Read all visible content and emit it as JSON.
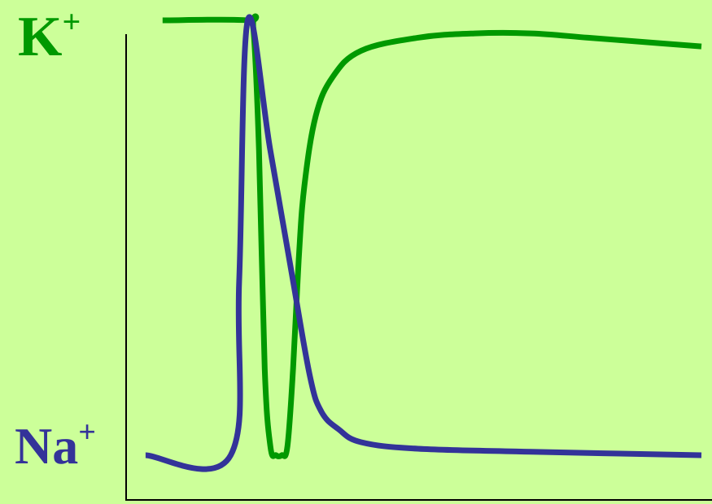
{
  "chart_data": {
    "type": "line",
    "title": "",
    "xlabel": "",
    "ylabel": "",
    "grid": false,
    "legend": "none",
    "xlim": [
      0,
      100
    ],
    "ylim": [
      0,
      100
    ],
    "background": "#ccff99",
    "axis_color": "#000000",
    "labels": [
      {
        "id": "k",
        "symbol": "K",
        "sup": "+",
        "color": "#009900"
      },
      {
        "id": "na",
        "symbol": "Na",
        "sup": "+",
        "color": "#333399"
      }
    ],
    "series": [
      {
        "id": "k",
        "color": "#009900",
        "points": [
          [
            5,
            100
          ],
          [
            20,
            100
          ],
          [
            21,
            98
          ],
          [
            22,
            70
          ],
          [
            23,
            20
          ],
          [
            24,
            2
          ],
          [
            25,
            0
          ],
          [
            26,
            0
          ],
          [
            27,
            2
          ],
          [
            28,
            20
          ],
          [
            29,
            45
          ],
          [
            30,
            62
          ],
          [
            32,
            78
          ],
          [
            35,
            87
          ],
          [
            40,
            93
          ],
          [
            50,
            96
          ],
          [
            60,
            97
          ],
          [
            70,
            97
          ],
          [
            80,
            96
          ],
          [
            90,
            95
          ],
          [
            100,
            94
          ]
        ]
      },
      {
        "id": "na",
        "color": "#333399",
        "points": [
          [
            2,
            0
          ],
          [
            17,
            0
          ],
          [
            18.5,
            40
          ],
          [
            20,
            100
          ],
          [
            24,
            70
          ],
          [
            28,
            40
          ],
          [
            31,
            18
          ],
          [
            33,
            10
          ],
          [
            36,
            6
          ],
          [
            40,
            3
          ],
          [
            50,
            1.5
          ],
          [
            70,
            0.8
          ],
          [
            100,
            0
          ]
        ]
      }
    ]
  }
}
